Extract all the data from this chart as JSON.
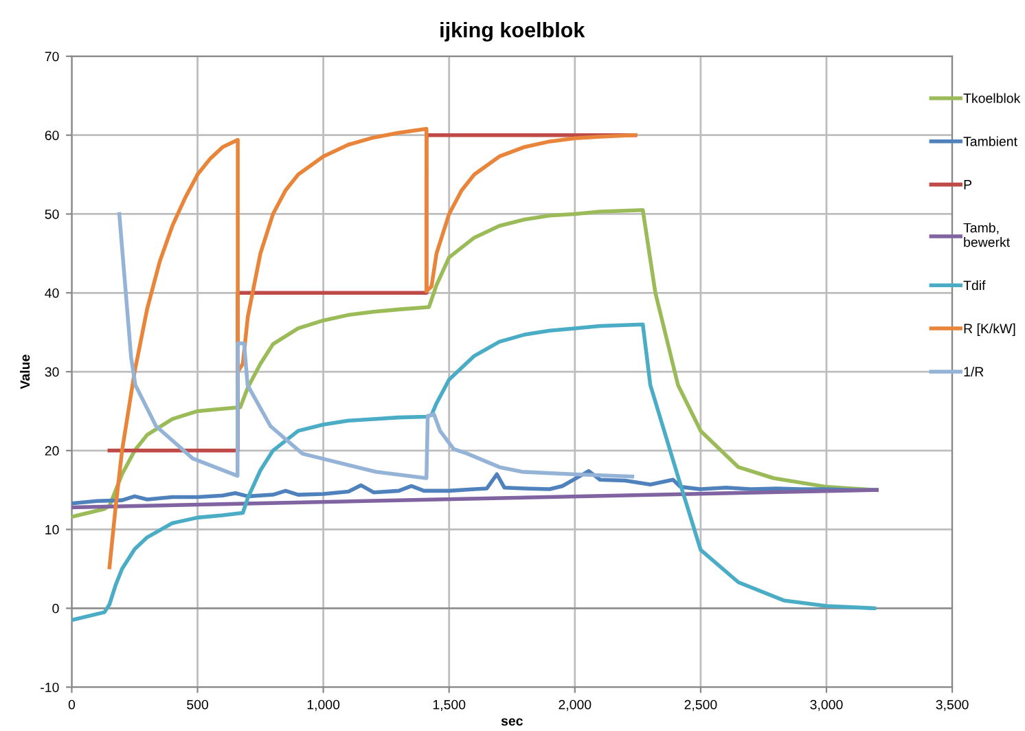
{
  "chart_data": {
    "type": "line",
    "title": "ijking koelblok",
    "xlabel": "sec",
    "ylabel": "Value",
    "xlim": [
      0,
      3500
    ],
    "ylim": [
      -10,
      70
    ],
    "xticks": [
      0,
      500,
      {
        "value": 1000,
        "label": "1,000"
      },
      {
        "value": 1500,
        "label": "1,500"
      },
      {
        "value": 2000,
        "label": "2,000"
      },
      {
        "value": 2500,
        "label": "2,500"
      },
      {
        "value": 3000,
        "label": "3,000"
      },
      {
        "value": 3500,
        "label": "3,500"
      }
    ],
    "yticks": [
      -10,
      0,
      10,
      20,
      30,
      40,
      50,
      60,
      70
    ],
    "grid": true,
    "legend": "right",
    "marker": "none",
    "line_style": "solid",
    "series": [
      {
        "name": "Tkoelblok",
        "color": "#9bbb59",
        "x": [
          0,
          130,
          150,
          200,
          250,
          300,
          400,
          500,
          600,
          670,
          700,
          750,
          800,
          900,
          1000,
          1100,
          1200,
          1300,
          1420,
          1450,
          1500,
          1600,
          1700,
          1800,
          1900,
          2000,
          2100,
          2270,
          2320,
          2410,
          2500,
          2650,
          2790,
          3000,
          3100,
          3200
        ],
        "values": [
          11.6,
          12.6,
          13,
          17,
          20,
          22,
          24,
          25,
          25.3,
          25.5,
          28,
          31,
          33.5,
          35.5,
          36.5,
          37.2,
          37.6,
          37.9,
          38.2,
          41,
          44.5,
          47,
          48.5,
          49.3,
          49.8,
          50,
          50.3,
          50.5,
          40,
          28.3,
          22.5,
          17.9,
          16.5,
          15.4,
          15.2,
          15
        ]
      },
      {
        "name": "Tambient",
        "color": "#4f81bd",
        "x": [
          0,
          100,
          200,
          250,
          300,
          400,
          500,
          600,
          650,
          700,
          800,
          850,
          900,
          1000,
          1100,
          1150,
          1200,
          1300,
          1350,
          1400,
          1500,
          1600,
          1650,
          1690,
          1720,
          1800,
          1900,
          1950,
          2000,
          2055,
          2100,
          2200,
          2300,
          2390,
          2420,
          2500,
          2600,
          2700,
          2800,
          2900,
          3000,
          3100,
          3200
        ],
        "values": [
          13.3,
          13.6,
          13.7,
          14.2,
          13.8,
          14.1,
          14.1,
          14.3,
          14.6,
          14.2,
          14.4,
          14.9,
          14.4,
          14.5,
          14.8,
          15.6,
          14.7,
          14.9,
          15.5,
          14.9,
          14.9,
          15.1,
          15.2,
          17,
          15.3,
          15.2,
          15.1,
          15.5,
          16.4,
          17.4,
          16.3,
          16.2,
          15.7,
          16.3,
          15.4,
          15.1,
          15.3,
          15.1,
          15.2,
          15.1,
          15.1,
          15,
          15
        ]
      },
      {
        "name": "P",
        "color": "#be4b48",
        "x": [
          150,
          660,
          660,
          1410,
          1410,
          2240
        ],
        "values": [
          20,
          20,
          40,
          40,
          60,
          60
        ]
      },
      {
        "name": "Tamb,\nbewerkt",
        "color": "#8064a2",
        "x": [
          0,
          3200
        ],
        "values": [
          12.8,
          15
        ]
      },
      {
        "name": "Tdif",
        "color": "#4bacc6",
        "x": [
          0,
          130,
          150,
          175,
          200,
          250,
          300,
          400,
          500,
          600,
          680,
          700,
          750,
          800,
          900,
          1000,
          1100,
          1200,
          1300,
          1410,
          1430,
          1450,
          1500,
          1600,
          1700,
          1800,
          1900,
          2000,
          2100,
          2270,
          2300,
          2410,
          2500,
          2650,
          2830,
          3000,
          3190
        ],
        "values": [
          -1.5,
          -0.5,
          0.5,
          3,
          5,
          7.5,
          9,
          10.8,
          11.5,
          11.8,
          12.1,
          14,
          17.5,
          20,
          22.5,
          23.3,
          23.8,
          24,
          24.2,
          24.3,
          24.5,
          26,
          29,
          32,
          33.8,
          34.7,
          35.2,
          35.5,
          35.8,
          36,
          28.3,
          16.7,
          7.4,
          3.3,
          1,
          0.3,
          0
        ]
      },
      {
        "name": "R [K/kW]",
        "color": "#e8853a",
        "x": [
          150,
          175,
          200,
          250,
          300,
          350,
          400,
          450,
          500,
          550,
          600,
          660,
          660,
          680,
          700,
          750,
          800,
          850,
          900,
          1000,
          1100,
          1200,
          1300,
          1410,
          1410,
          1430,
          1450,
          1500,
          1550,
          1600,
          1700,
          1800,
          1900,
          2000,
          2100,
          2240
        ],
        "values": [
          5.2,
          13,
          20,
          30,
          38,
          44,
          48.5,
          52,
          55,
          57,
          58.5,
          59.4,
          30,
          31,
          37,
          45,
          50,
          53,
          55,
          57.3,
          58.8,
          59.7,
          60.3,
          60.8,
          40.2,
          40.8,
          45,
          50,
          53,
          55,
          57.3,
          58.5,
          59.2,
          59.6,
          59.8,
          60
        ]
      },
      {
        "name": "1/R",
        "color": "#95b3d7",
        "x": [
          189,
          236,
          253,
          335,
          481,
          659,
          660,
          685,
          699,
          790,
          917,
          1209,
          1410,
          1415,
          1440,
          1464,
          1518,
          1573,
          1700,
          1791,
          1991,
          2228
        ],
        "values": [
          50,
          31.8,
          28.3,
          23.1,
          19,
          16.8,
          33.6,
          33.6,
          28.3,
          23.1,
          19.6,
          17.3,
          16.5,
          24.4,
          24.6,
          22.5,
          20.2,
          19.6,
          17.9,
          17.3,
          17,
          16.7
        ]
      }
    ]
  }
}
